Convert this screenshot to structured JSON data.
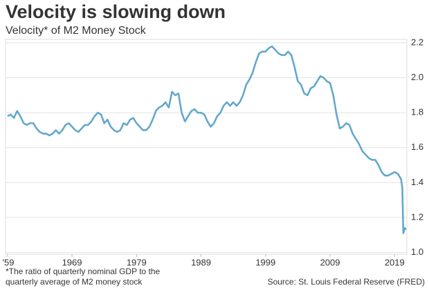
{
  "chart_data": {
    "type": "line",
    "title": "Velocity is slowing down",
    "subtitle": "Velocity* of M2 Money Stock",
    "footnote_lines": [
      "*The ratio of quarterly nominal GDP to the",
      "quarterly average of M2 money stock"
    ],
    "source": "Source: St. Louis Federal Reserve (FRED)",
    "x": [
      1959,
      1959.5,
      1960,
      1960.5,
      1961,
      1961.5,
      1962,
      1962.5,
      1963,
      1963.5,
      1964,
      1964.5,
      1965,
      1965.5,
      1966,
      1966.5,
      1967,
      1967.5,
      1968,
      1968.5,
      1969,
      1969.5,
      1970,
      1970.5,
      1971,
      1971.5,
      1972,
      1972.5,
      1973,
      1973.5,
      1974,
      1974.5,
      1975,
      1975.5,
      1976,
      1976.5,
      1977,
      1977.5,
      1978,
      1978.5,
      1979,
      1979.5,
      1980,
      1980.5,
      1981,
      1981.5,
      1982,
      1982.5,
      1983,
      1983.5,
      1984,
      1984.5,
      1985,
      1985.5,
      1986,
      1986.5,
      1987,
      1987.5,
      1988,
      1988.5,
      1989,
      1989.5,
      1990,
      1990.5,
      1991,
      1991.5,
      1992,
      1992.5,
      1993,
      1993.5,
      1994,
      1994.5,
      1995,
      1995.5,
      1996,
      1996.5,
      1997,
      1997.5,
      1998,
      1998.5,
      1999,
      1999.5,
      2000,
      2000.5,
      2001,
      2001.5,
      2002,
      2002.5,
      2003,
      2003.5,
      2004,
      2004.5,
      2005,
      2005.5,
      2006,
      2006.5,
      2007,
      2007.5,
      2008,
      2008.5,
      2009,
      2009.5,
      2010,
      2010.5,
      2011,
      2011.5,
      2012,
      2012.5,
      2013,
      2013.5,
      2014,
      2014.5,
      2015,
      2015.5,
      2016,
      2016.5,
      2017,
      2017.5,
      2018,
      2018.5,
      2019,
      2019.5,
      2020,
      2020.2,
      2020.35,
      2020.6,
      2020.75
    ],
    "series": [
      {
        "name": "Velocity of M2 Money Stock",
        "color": "#63a8cb",
        "values": [
          1.78,
          1.79,
          1.77,
          1.81,
          1.78,
          1.74,
          1.73,
          1.74,
          1.74,
          1.71,
          1.69,
          1.68,
          1.68,
          1.67,
          1.68,
          1.7,
          1.68,
          1.7,
          1.73,
          1.74,
          1.72,
          1.7,
          1.69,
          1.71,
          1.73,
          1.73,
          1.75,
          1.78,
          1.8,
          1.79,
          1.74,
          1.76,
          1.72,
          1.7,
          1.69,
          1.7,
          1.74,
          1.73,
          1.76,
          1.77,
          1.74,
          1.72,
          1.7,
          1.7,
          1.72,
          1.76,
          1.81,
          1.83,
          1.84,
          1.86,
          1.83,
          1.92,
          1.9,
          1.91,
          1.8,
          1.75,
          1.78,
          1.81,
          1.82,
          1.8,
          1.8,
          1.79,
          1.75,
          1.72,
          1.74,
          1.78,
          1.8,
          1.84,
          1.86,
          1.84,
          1.86,
          1.84,
          1.86,
          1.9,
          1.96,
          1.99,
          2.03,
          2.09,
          2.14,
          2.15,
          2.15,
          2.17,
          2.18,
          2.16,
          2.14,
          2.13,
          2.13,
          2.15,
          2.13,
          2.06,
          1.98,
          1.96,
          1.91,
          1.9,
          1.94,
          1.95,
          1.98,
          2.01,
          2.0,
          1.98,
          1.97,
          1.9,
          1.79,
          1.71,
          1.72,
          1.74,
          1.73,
          1.68,
          1.65,
          1.62,
          1.58,
          1.56,
          1.54,
          1.53,
          1.53,
          1.5,
          1.46,
          1.44,
          1.44,
          1.45,
          1.46,
          1.45,
          1.42,
          1.37,
          1.11,
          1.14,
          1.13
        ]
      }
    ],
    "xlim": [
      1958.7,
      2020.9
    ],
    "xticks": [
      {
        "value": 1959,
        "label": "'59"
      },
      1969,
      1979,
      1989,
      1999,
      2009,
      2019
    ],
    "ylim": [
      0.99,
      2.22
    ],
    "yticks": [
      {
        "value": 1,
        "label": "1.0"
      },
      1.2,
      1.4,
      1.6,
      1.8,
      {
        "value": 2,
        "label": "2.0"
      },
      2.2
    ],
    "grid": true
  }
}
